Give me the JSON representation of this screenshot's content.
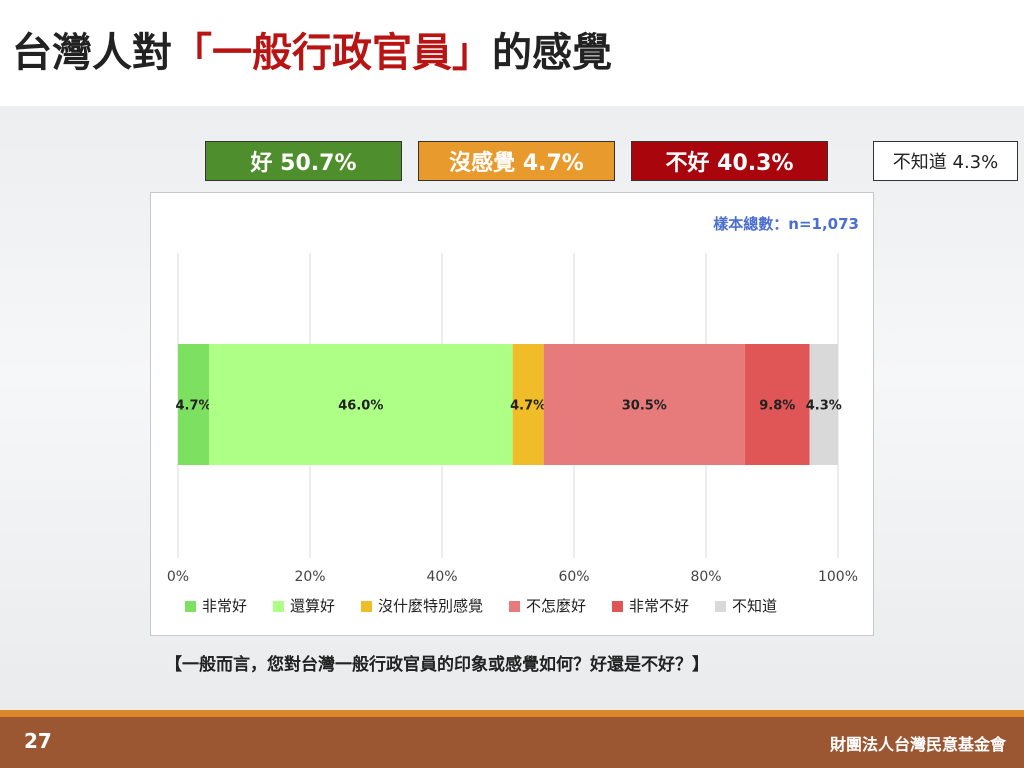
{
  "title": {
    "prefix": "台灣人對",
    "highlight": "「一般行政官員」",
    "suffix": "的感覺"
  },
  "summary": {
    "good": "好 50.7%",
    "neutral": "沒感覺 4.7%",
    "bad": "不好 40.3%",
    "dont_know": "不知道 4.3%"
  },
  "sample_note": "樣本總數：n=1,073",
  "question": "【一般而言，您對台灣一般行政官員的印象或感覺如何？好還是不好？】",
  "footer": {
    "page_number": "27",
    "organization": "財團法人台灣民意基金會"
  },
  "chart_data": {
    "type": "bar",
    "orientation": "horizontal",
    "stacked": true,
    "xlim": [
      0,
      100
    ],
    "x_ticks": [
      "0%",
      "20%",
      "40%",
      "60%",
      "80%",
      "100%"
    ],
    "grid": true,
    "legend_position": "bottom",
    "series": [
      {
        "name": "非常好",
        "value": 4.7,
        "label": "4.7%",
        "color": "#7ee060"
      },
      {
        "name": "還算好",
        "value": 46.0,
        "label": "46.0%",
        "color": "#adff86"
      },
      {
        "name": "沒什麼特別感覺",
        "value": 4.7,
        "label": "4.7%",
        "color": "#f0bd28"
      },
      {
        "name": "不怎麼好",
        "value": 30.5,
        "label": "30.5%",
        "color": "#e77b7b"
      },
      {
        "name": "非常不好",
        "value": 9.8,
        "label": "9.8%",
        "color": "#e05555"
      },
      {
        "name": "不知道",
        "value": 4.3,
        "label": "4.3%",
        "color": "#d9d9d9"
      }
    ]
  }
}
